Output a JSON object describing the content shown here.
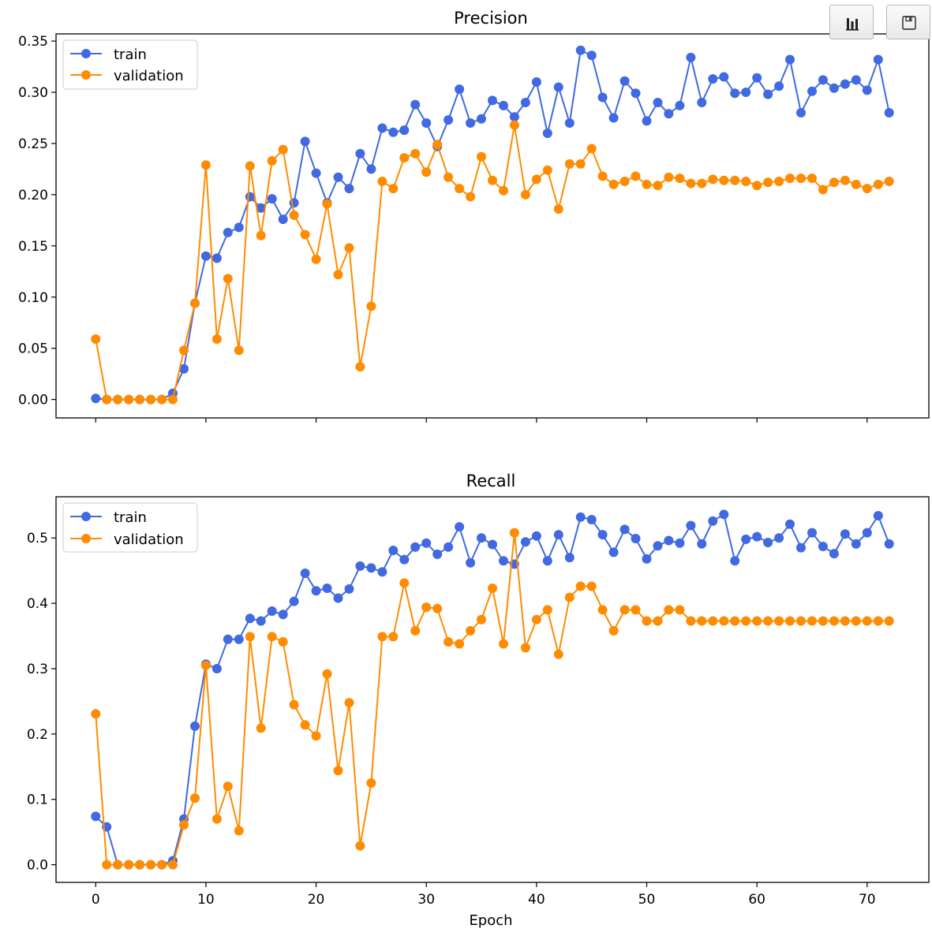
{
  "toolbar": {
    "icons": [
      "bar-chart-icon",
      "save-icon"
    ]
  },
  "colors": {
    "train": "#4169e1",
    "validation": "#ff8c00"
  },
  "chart_data": [
    {
      "type": "line",
      "title": "Precision",
      "xlabel": "",
      "ylabel": "",
      "ylim": [
        -0.018,
        0.357
      ],
      "yticks": [
        "0.00",
        "0.05",
        "0.10",
        "0.15",
        "0.20",
        "0.25",
        "0.30",
        "0.35"
      ],
      "ytick_values": [
        0,
        0.05,
        0.1,
        0.15,
        0.2,
        0.25,
        0.3,
        0.35
      ],
      "xlim": [
        -3.6,
        75.6
      ],
      "xticks": [],
      "xtick_values": [
        0,
        10,
        20,
        30,
        40,
        50,
        60,
        70
      ],
      "legend": "top-left",
      "grid": false,
      "series": [
        {
          "name": "train",
          "color": "#4169e1",
          "values": [
            0.001,
            0,
            0,
            0,
            0,
            0,
            0,
            0.006,
            0.03,
            0.094,
            0.14,
            0.138,
            0.163,
            0.168,
            0.198,
            0.187,
            0.196,
            0.176,
            0.192,
            0.252,
            0.221,
            0.192,
            0.217,
            0.206,
            0.24,
            0.225,
            0.265,
            0.261,
            0.263,
            0.288,
            0.27,
            0.247,
            0.273,
            0.303,
            0.27,
            0.274,
            0.292,
            0.287,
            0.276,
            0.29,
            0.31,
            0.26,
            0.305,
            0.27,
            0.341,
            0.336,
            0.295,
            0.275,
            0.311,
            0.299,
            0.272,
            0.29,
            0.279,
            0.287,
            0.334,
            0.29,
            0.313,
            0.315,
            0.299,
            0.3,
            0.314,
            0.298,
            0.306,
            0.332,
            0.28,
            0.301,
            0.312,
            0.304,
            0.308,
            0.312,
            0.302,
            0.332,
            0.28
          ]
        },
        {
          "name": "validation",
          "color": "#ff8c00",
          "values": [
            0.059,
            0,
            0,
            0,
            0,
            0,
            0,
            0,
            0.048,
            0.094,
            0.229,
            0.059,
            0.118,
            0.048,
            0.228,
            0.16,
            0.233,
            0.244,
            0.18,
            0.161,
            0.137,
            0.191,
            0.122,
            0.148,
            0.032,
            0.091,
            0.213,
            0.206,
            0.236,
            0.24,
            0.222,
            0.249,
            0.217,
            0.206,
            0.198,
            0.237,
            0.214,
            0.204,
            0.268,
            0.2,
            0.215,
            0.224,
            0.186,
            0.23,
            0.23,
            0.245,
            0.218,
            0.21,
            0.213,
            0.218,
            0.21,
            0.209,
            0.217,
            0.216,
            0.211,
            0.211,
            0.215,
            0.214,
            0.214,
            0.213,
            0.209,
            0.212,
            0.213,
            0.216,
            0.216,
            0.216,
            0.205,
            0.212,
            0.214,
            0.21,
            0.206,
            0.21,
            0.213
          ]
        }
      ]
    },
    {
      "type": "line",
      "title": "Recall",
      "xlabel": "Epoch",
      "ylabel": "",
      "ylim": [
        -0.027,
        0.563
      ],
      "yticks": [
        "0.0",
        "0.1",
        "0.2",
        "0.3",
        "0.4",
        "0.5"
      ],
      "ytick_values": [
        0,
        0.1,
        0.2,
        0.3,
        0.4,
        0.5
      ],
      "xlim": [
        -3.6,
        75.6
      ],
      "xticks": [
        "0",
        "10",
        "20",
        "30",
        "40",
        "50",
        "60",
        "70"
      ],
      "xtick_values": [
        0,
        10,
        20,
        30,
        40,
        50,
        60,
        70
      ],
      "legend": "top-left",
      "grid": false,
      "series": [
        {
          "name": "train",
          "color": "#4169e1",
          "values": [
            0.074,
            0.058,
            0,
            0,
            0,
            0,
            0,
            0.006,
            0.07,
            0.212,
            0.307,
            0.3,
            0.345,
            0.345,
            0.377,
            0.373,
            0.388,
            0.383,
            0.403,
            0.446,
            0.419,
            0.423,
            0.408,
            0.422,
            0.457,
            0.454,
            0.448,
            0.481,
            0.467,
            0.486,
            0.492,
            0.475,
            0.486,
            0.517,
            0.462,
            0.5,
            0.49,
            0.465,
            0.46,
            0.494,
            0.503,
            0.465,
            0.505,
            0.47,
            0.532,
            0.528,
            0.505,
            0.478,
            0.513,
            0.499,
            0.468,
            0.488,
            0.496,
            0.492,
            0.519,
            0.491,
            0.526,
            0.536,
            0.465,
            0.498,
            0.502,
            0.493,
            0.5,
            0.521,
            0.485,
            0.508,
            0.487,
            0.476,
            0.506,
            0.491,
            0.508,
            0.534,
            0.491
          ]
        },
        {
          "name": "validation",
          "color": "#ff8c00",
          "values": [
            0.231,
            0,
            0,
            0,
            0,
            0,
            0,
            0,
            0.061,
            0.102,
            0.305,
            0.07,
            0.12,
            0.052,
            0.349,
            0.209,
            0.349,
            0.341,
            0.245,
            0.214,
            0.197,
            0.292,
            0.144,
            0.248,
            0.029,
            0.125,
            0.349,
            0.349,
            0.431,
            0.358,
            0.394,
            0.392,
            0.341,
            0.338,
            0.358,
            0.375,
            0.423,
            0.338,
            0.508,
            0.332,
            0.375,
            0.39,
            0.322,
            0.409,
            0.426,
            0.426,
            0.39,
            0.358,
            0.39,
            0.39,
            0.373,
            0.373,
            0.39,
            0.39,
            0.373,
            0.373,
            0.373,
            0.373,
            0.373,
            0.373,
            0.373,
            0.373,
            0.373,
            0.373,
            0.373,
            0.373,
            0.373,
            0.373,
            0.373,
            0.373,
            0.373,
            0.373,
            0.373
          ]
        }
      ]
    }
  ]
}
